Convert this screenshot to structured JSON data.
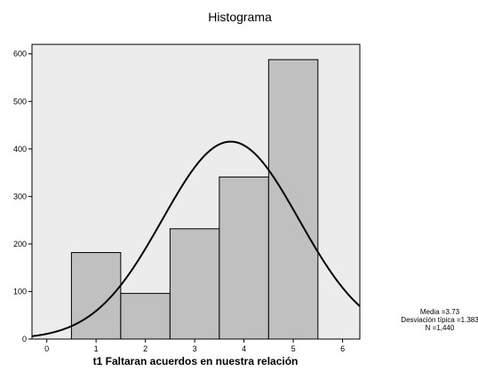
{
  "chart_data": {
    "type": "bar",
    "title": "Histograma",
    "xlabel": "t1 Faltaran acuerdos en nuestra relación",
    "ylabel": "",
    "x_ticks": [
      "0",
      "1",
      "2",
      "3",
      "4",
      "5",
      "6"
    ],
    "y_ticks": [
      "0",
      "100",
      "200",
      "300",
      "400",
      "500",
      "600"
    ],
    "xlim": [
      -0.3,
      6.35
    ],
    "ylim": [
      0,
      620
    ],
    "bins": [
      {
        "x0": 0.5,
        "x1": 1.5,
        "value": 182
      },
      {
        "x0": 1.5,
        "x1": 2.5,
        "value": 96
      },
      {
        "x0": 2.5,
        "x1": 3.5,
        "value": 232
      },
      {
        "x0": 3.5,
        "x1": 4.5,
        "value": 341
      },
      {
        "x0": 4.5,
        "x1": 5.5,
        "value": 588
      }
    ],
    "normal_curve": {
      "mean": 3.73,
      "sd": 1.383,
      "n": 1440,
      "bin_width": 1
    },
    "grid": false,
    "legend": "none",
    "colors": {
      "plot_background": "#ececec",
      "bar_fill": "#c0c0c0",
      "line": "#000000"
    },
    "stats": {
      "media": "Media =3.73",
      "desviacion": "Desviación típica =1.383",
      "n": "N =1,440"
    }
  }
}
